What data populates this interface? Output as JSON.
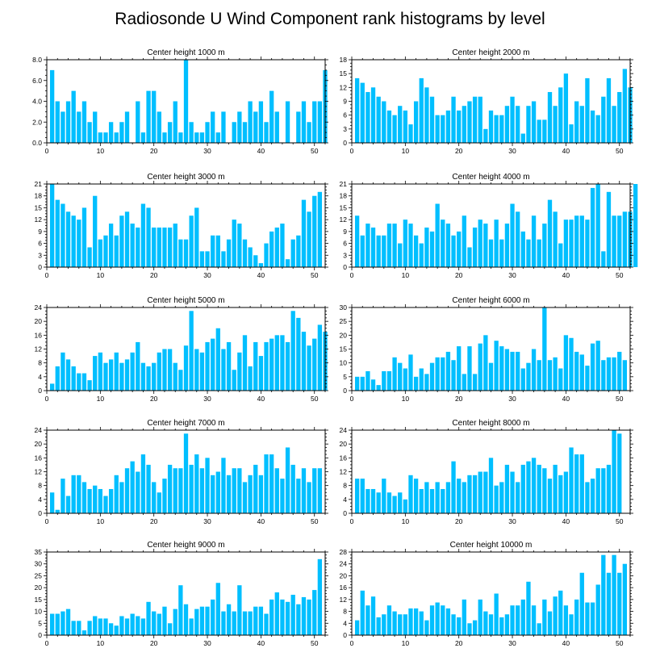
{
  "title": "Radiosonde U Wind Component rank histograms by level",
  "colors": {
    "bar": "#00bfff",
    "axis": "#000000",
    "background": "#ffffff"
  },
  "chart_data": [
    {
      "type": "bar",
      "title": "Center height 1000 m",
      "xlim": [
        0,
        52
      ],
      "ylim": [
        0,
        8
      ],
      "xticks": [
        0,
        10,
        20,
        30,
        40,
        50
      ],
      "yticks": [
        0,
        2,
        4,
        6,
        8
      ],
      "yticklabels": [
        "0.0",
        "2.0",
        "4.0",
        "6.0",
        "8.0"
      ],
      "values": [
        7,
        4,
        3,
        4,
        5,
        3,
        4,
        2,
        3,
        1,
        1,
        2,
        1,
        2,
        3,
        0,
        4,
        1,
        5,
        5,
        3,
        1,
        2,
        4,
        1,
        8,
        2,
        1,
        1,
        2,
        3,
        1,
        3,
        0,
        2,
        3,
        2,
        4,
        3,
        4,
        2,
        5,
        3,
        0,
        4,
        0,
        3,
        4,
        2,
        4,
        4,
        7
      ]
    },
    {
      "type": "bar",
      "title": "Center height 2000 m",
      "xlim": [
        0,
        52
      ],
      "ylim": [
        0,
        18
      ],
      "xticks": [
        0,
        10,
        20,
        30,
        40,
        50
      ],
      "yticks": [
        0,
        3,
        6,
        9,
        12,
        15,
        18
      ],
      "yticklabels": [
        "0",
        "3",
        "6",
        "9",
        "12",
        "15",
        "18"
      ],
      "values": [
        14,
        13,
        11,
        12,
        10,
        9,
        7,
        6,
        8,
        7,
        4,
        9,
        14,
        12,
        10,
        6,
        6,
        7,
        10,
        7,
        8,
        9,
        10,
        10,
        3,
        7,
        6,
        6,
        8,
        10,
        8,
        2,
        8,
        9,
        5,
        5,
        11,
        8,
        12,
        15,
        4,
        9,
        8,
        14,
        7,
        6,
        10,
        14,
        8,
        11,
        16,
        12
      ]
    },
    {
      "type": "bar",
      "title": "Center height 3000 m",
      "xlim": [
        0,
        52
      ],
      "ylim": [
        0,
        21
      ],
      "xticks": [
        0,
        10,
        20,
        30,
        40,
        50
      ],
      "yticks": [
        0,
        3,
        6,
        9,
        12,
        15,
        18,
        21
      ],
      "yticklabels": [
        "0",
        "3",
        "6",
        "9",
        "12",
        "15",
        "18",
        "21"
      ],
      "values": [
        21,
        17,
        16,
        14,
        13,
        12,
        15,
        5,
        18,
        7,
        8,
        11,
        8,
        13,
        14,
        11,
        10,
        16,
        15,
        10,
        10,
        10,
        10,
        11,
        7,
        7,
        13,
        15,
        4,
        4,
        8,
        8,
        4,
        7,
        12,
        11,
        7,
        5,
        3,
        1,
        6,
        9,
        10,
        11,
        2,
        7,
        8,
        17,
        14,
        18,
        19,
        0
      ]
    },
    {
      "type": "bar",
      "title": "Center height 4000 m",
      "xlim": [
        0,
        52
      ],
      "ylim": [
        0,
        21
      ],
      "xticks": [
        0,
        10,
        20,
        30,
        40,
        50
      ],
      "yticks": [
        0,
        3,
        6,
        9,
        12,
        15,
        18,
        21
      ],
      "yticklabels": [
        "0",
        "3",
        "6",
        "9",
        "12",
        "15",
        "18",
        "21"
      ],
      "values": [
        13,
        8,
        11,
        10,
        8,
        8,
        11,
        11,
        6,
        12,
        11,
        8,
        6,
        10,
        9,
        16,
        12,
        11,
        8,
        9,
        13,
        5,
        10,
        12,
        11,
        7,
        12,
        7,
        11,
        16,
        14,
        9,
        7,
        13,
        7,
        11,
        17,
        14,
        6,
        12,
        12,
        13,
        13,
        12,
        20,
        21,
        4,
        19,
        13,
        13,
        14,
        14,
        21
      ]
    },
    {
      "type": "bar",
      "title": "Center height 5000 m",
      "xlim": [
        0,
        52
      ],
      "ylim": [
        0,
        24
      ],
      "xticks": [
        0,
        10,
        20,
        30,
        40,
        50
      ],
      "yticks": [
        0,
        4,
        8,
        12,
        16,
        20,
        24
      ],
      "yticklabels": [
        "0",
        "4",
        "8",
        "12",
        "16",
        "20",
        "24"
      ],
      "values": [
        2,
        7,
        11,
        9,
        7,
        5,
        5,
        3,
        10,
        11,
        8,
        9,
        11,
        8,
        9,
        11,
        14,
        8,
        7,
        8,
        11,
        12,
        12,
        8,
        6,
        13,
        23,
        12,
        11,
        14,
        15,
        18,
        12,
        14,
        6,
        11,
        16,
        7,
        14,
        10,
        14,
        15,
        16,
        16,
        14,
        23,
        21,
        17,
        13,
        15,
        19,
        17
      ]
    },
    {
      "type": "bar",
      "title": "Center height 6000 m",
      "xlim": [
        0,
        52
      ],
      "ylim": [
        0,
        30
      ],
      "xticks": [
        0,
        10,
        20,
        30,
        40,
        50
      ],
      "yticks": [
        0,
        5,
        10,
        15,
        20,
        25,
        30
      ],
      "yticklabels": [
        "0",
        "5",
        "10",
        "15",
        "20",
        "25",
        "30"
      ],
      "values": [
        5,
        5,
        7,
        4,
        2,
        7,
        7,
        12,
        10,
        8,
        13,
        5,
        8,
        6,
        10,
        12,
        12,
        14,
        11,
        16,
        6,
        16,
        6,
        17,
        20,
        10,
        18,
        16,
        15,
        14,
        14,
        8,
        10,
        15,
        11,
        30,
        11,
        12,
        8,
        20,
        19,
        14,
        13,
        9,
        17,
        18,
        11,
        12,
        12,
        14,
        11
      ]
    },
    {
      "type": "bar",
      "title": "Center height 7000 m",
      "xlim": [
        0,
        52
      ],
      "ylim": [
        0,
        24
      ],
      "xticks": [
        0,
        10,
        20,
        30,
        40,
        50
      ],
      "yticks": [
        0,
        4,
        8,
        12,
        16,
        20,
        24
      ],
      "yticklabels": [
        "0",
        "4",
        "8",
        "12",
        "16",
        "20",
        "24"
      ],
      "values": [
        6,
        1,
        10,
        5,
        11,
        11,
        9,
        7,
        8,
        7,
        5,
        7,
        11,
        9,
        13,
        15,
        12,
        17,
        14,
        9,
        6,
        10,
        14,
        13,
        13,
        23,
        14,
        17,
        13,
        16,
        11,
        12,
        16,
        11,
        13,
        13,
        9,
        11,
        14,
        11,
        17,
        17,
        13,
        10,
        19,
        14,
        10,
        13,
        9,
        13,
        13
      ]
    },
    {
      "type": "bar",
      "title": "Center height 8000 m",
      "xlim": [
        0,
        52
      ],
      "ylim": [
        0,
        24
      ],
      "xticks": [
        0,
        10,
        20,
        30,
        40,
        50
      ],
      "yticks": [
        0,
        4,
        8,
        12,
        16,
        20,
        24
      ],
      "yticklabels": [
        "0",
        "4",
        "8",
        "12",
        "16",
        "20",
        "24"
      ],
      "values": [
        10,
        10,
        7,
        7,
        6,
        10,
        6,
        5,
        6,
        4,
        11,
        10,
        7,
        9,
        7,
        9,
        7,
        9,
        15,
        10,
        9,
        11,
        11,
        12,
        12,
        16,
        8,
        9,
        14,
        12,
        9,
        14,
        15,
        16,
        14,
        13,
        10,
        14,
        11,
        12,
        19,
        17,
        17,
        9,
        10,
        13,
        13,
        14,
        24,
        23
      ]
    },
    {
      "type": "bar",
      "title": "Center height 9000 m",
      "xlim": [
        0,
        52
      ],
      "ylim": [
        0,
        35
      ],
      "xticks": [
        0,
        10,
        20,
        30,
        40,
        50
      ],
      "yticks": [
        0,
        5,
        10,
        15,
        20,
        25,
        30,
        35
      ],
      "yticklabels": [
        "0",
        "5",
        "10",
        "15",
        "20",
        "25",
        "30",
        "35"
      ],
      "values": [
        9,
        9,
        10,
        11,
        6,
        6,
        2,
        6,
        8,
        7,
        7,
        5,
        4,
        8,
        7,
        9,
        8,
        7,
        14,
        10,
        9,
        12,
        5,
        11,
        21,
        13,
        7,
        11,
        12,
        12,
        15,
        22,
        10,
        13,
        10,
        21,
        10,
        10,
        12,
        12,
        9,
        15,
        18,
        15,
        14,
        17,
        13,
        16,
        15,
        19,
        32
      ]
    },
    {
      "type": "bar",
      "title": "Center height 10000 m",
      "xlim": [
        0,
        52
      ],
      "ylim": [
        0,
        28
      ],
      "xticks": [
        0,
        10,
        20,
        30,
        40,
        50
      ],
      "yticks": [
        0,
        4,
        8,
        12,
        16,
        20,
        24,
        28
      ],
      "yticklabels": [
        "0",
        "4",
        "8",
        "12",
        "16",
        "20",
        "24",
        "28"
      ],
      "values": [
        5,
        15,
        10,
        13,
        6,
        7,
        10,
        8,
        7,
        7,
        9,
        9,
        8,
        5,
        10,
        11,
        10,
        9,
        7,
        6,
        12,
        4,
        5,
        12,
        8,
        7,
        14,
        6,
        7,
        10,
        10,
        12,
        18,
        10,
        4,
        12,
        8,
        13,
        15,
        10,
        7,
        12,
        21,
        11,
        11,
        17,
        27,
        21,
        27,
        21,
        24
      ]
    }
  ]
}
